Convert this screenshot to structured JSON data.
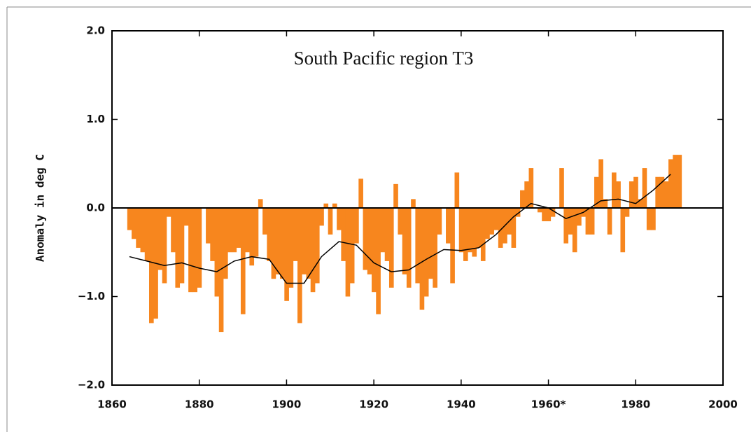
{
  "chart_data": {
    "type": "bar",
    "title": "South Pacific region T3",
    "y_label": "Anomaly in deg C",
    "x": [
      1864,
      1865,
      1866,
      1867,
      1868,
      1869,
      1870,
      1871,
      1872,
      1873,
      1874,
      1875,
      1876,
      1877,
      1878,
      1879,
      1880,
      1881,
      1882,
      1883,
      1884,
      1885,
      1886,
      1887,
      1888,
      1889,
      1890,
      1891,
      1892,
      1893,
      1894,
      1895,
      1896,
      1897,
      1898,
      1899,
      1900,
      1901,
      1902,
      1903,
      1904,
      1905,
      1906,
      1907,
      1908,
      1909,
      1910,
      1911,
      1912,
      1913,
      1914,
      1915,
      1916,
      1917,
      1918,
      1919,
      1920,
      1921,
      1922,
      1923,
      1924,
      1925,
      1926,
      1927,
      1928,
      1929,
      1930,
      1931,
      1932,
      1933,
      1934,
      1935,
      1936,
      1937,
      1938,
      1939,
      1940,
      1941,
      1942,
      1943,
      1944,
      1945,
      1946,
      1947,
      1948,
      1949,
      1950,
      1951,
      1952,
      1953,
      1954,
      1955,
      1956,
      1957,
      1958,
      1959,
      1960,
      1961,
      1962,
      1963,
      1964,
      1965,
      1966,
      1967,
      1968,
      1969,
      1970,
      1971,
      1972,
      1973,
      1974,
      1975,
      1976,
      1977,
      1978,
      1979,
      1980,
      1981,
      1982,
      1983,
      1984,
      1985,
      1986,
      1987,
      1988,
      1989,
      1990
    ],
    "values": [
      -0.25,
      -0.35,
      -0.45,
      -0.5,
      -0.6,
      -1.3,
      -1.25,
      -0.7,
      -0.85,
      -0.1,
      -0.5,
      -0.9,
      -0.85,
      -0.2,
      -0.95,
      -0.95,
      -0.9,
      0.0,
      -0.4,
      -0.6,
      -1.0,
      -1.4,
      -0.8,
      -0.5,
      -0.5,
      -0.45,
      -1.2,
      -0.5,
      -0.65,
      -0.55,
      0.1,
      -0.3,
      -0.6,
      -0.8,
      -0.75,
      -0.8,
      -1.05,
      -0.9,
      -0.6,
      -1.3,
      -0.75,
      -0.8,
      -0.95,
      -0.85,
      -0.2,
      0.05,
      -0.3,
      0.05,
      -0.25,
      -0.6,
      -1.0,
      -0.85,
      -0.4,
      0.33,
      -0.7,
      -0.75,
      -0.95,
      -1.2,
      -0.5,
      -0.6,
      -0.9,
      0.27,
      -0.3,
      -0.75,
      -0.9,
      0.1,
      -0.85,
      -1.15,
      -1.0,
      -0.8,
      -0.9,
      -0.3,
      0.0,
      -0.4,
      -0.85,
      0.4,
      -0.5,
      -0.6,
      -0.5,
      -0.55,
      -0.45,
      -0.6,
      -0.35,
      -0.3,
      -0.25,
      -0.45,
      -0.4,
      -0.3,
      -0.45,
      -0.1,
      0.2,
      0.3,
      0.45,
      0.0,
      -0.05,
      -0.15,
      -0.15,
      -0.1,
      0.0,
      0.45,
      -0.4,
      -0.3,
      -0.5,
      -0.2,
      -0.1,
      -0.3,
      -0.3,
      0.35,
      0.55,
      0.1,
      -0.3,
      0.4,
      0.3,
      -0.5,
      -0.1,
      0.3,
      0.35,
      0.1,
      0.45,
      -0.25,
      -0.25,
      0.35,
      0.35,
      0.3,
      0.55,
      0.6,
      0.6
    ],
    "color": "#f7861e",
    "smooth": {
      "x": [
        1864,
        1868,
        1872,
        1876,
        1880,
        1884,
        1888,
        1892,
        1896,
        1900,
        1904,
        1908,
        1912,
        1916,
        1920,
        1924,
        1928,
        1932,
        1936,
        1940,
        1944,
        1948,
        1952,
        1956,
        1960,
        1964,
        1968,
        1972,
        1976,
        1980,
        1984,
        1988
      ],
      "values": [
        -0.55,
        -0.6,
        -0.65,
        -0.62,
        -0.68,
        -0.72,
        -0.6,
        -0.55,
        -0.58,
        -0.85,
        -0.85,
        -0.55,
        -0.38,
        -0.42,
        -0.62,
        -0.72,
        -0.7,
        -0.58,
        -0.47,
        -0.48,
        -0.45,
        -0.3,
        -0.1,
        0.05,
        0.0,
        -0.12,
        -0.05,
        0.08,
        0.1,
        0.05,
        0.2,
        0.38
      ],
      "color": "#000000"
    },
    "xlim": [
      1860,
      2000
    ],
    "xticks": [
      1860,
      1880,
      1900,
      1920,
      1940,
      {
        "value": 1960,
        "label": "1960*"
      },
      1980,
      2000
    ],
    "ylim": [
      -2,
      2
    ],
    "yticks": [
      {
        "value": 2,
        "label": "2.0"
      },
      {
        "value": 1,
        "label": "1.0"
      },
      {
        "value": 0,
        "label": "0.0"
      },
      {
        "value": -1,
        "label": "−1.0"
      },
      {
        "value": -2,
        "label": "−2.0"
      }
    ]
  }
}
